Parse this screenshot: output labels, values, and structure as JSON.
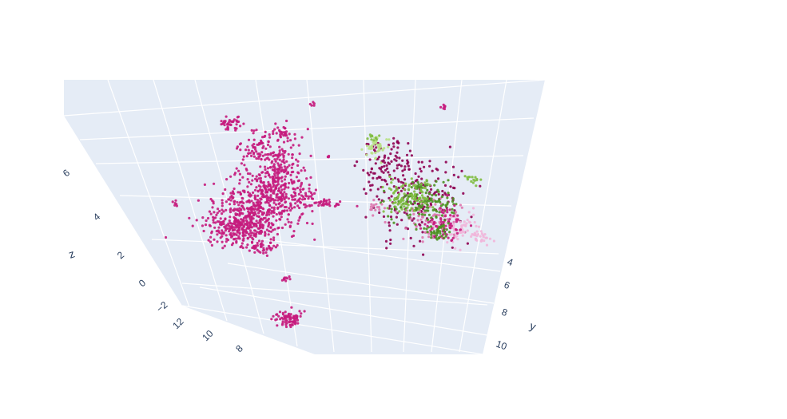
{
  "chart_data": {
    "type": "scatter3d",
    "title": "",
    "axes": {
      "x": {
        "label": "",
        "ticks": [
          "12",
          "10",
          "8"
        ]
      },
      "y": {
        "label": "y",
        "ticks": [
          "4",
          "6",
          "8",
          "10"
        ]
      },
      "z": {
        "label": "z",
        "ticks": [
          "−2",
          "0",
          "2",
          "4",
          "6"
        ]
      }
    },
    "scene_background": "#e5ecf6",
    "grid": true,
    "legend": "none",
    "colors": {
      "magenta": "#c51b7d",
      "pink": "#de77ae",
      "dark_magenta": "#8e0152",
      "light_pink": "#f1b6da",
      "dark_green": "#4d9221",
      "green": "#7fbc41",
      "light_green": "#b8e186"
    },
    "clusters": [
      {
        "group": "magenta",
        "description": "large cluster left",
        "approx_points": 1400
      },
      {
        "group": "mixed",
        "description": "mixed cluster right",
        "approx_points": 1200
      }
    ]
  }
}
